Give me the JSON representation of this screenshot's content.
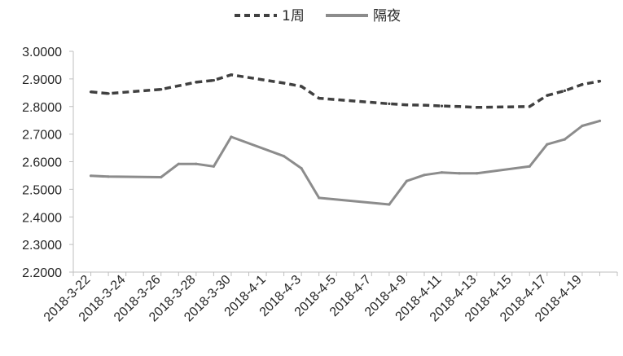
{
  "chart_data": {
    "type": "line",
    "title": "",
    "xlabel": "",
    "ylabel": "",
    "ylim": [
      2.2,
      3.0
    ],
    "y_ticks": [
      "3.0000",
      "2.9000",
      "2.8000",
      "2.7000",
      "2.6000",
      "2.5000",
      "2.4000",
      "2.3000",
      "2.2000"
    ],
    "x_tick_labels": [
      "2018-3-22",
      "2018-3-24",
      "2018-3-26",
      "2018-3-28",
      "2018-3-30",
      "2018-4-1",
      "2018-4-3",
      "2018-4-5",
      "2018-4-7",
      "2018-4-9",
      "2018-4-11",
      "2018-4-13",
      "2018-4-15",
      "2018-4-17",
      "2018-4-19"
    ],
    "legend_position": "top",
    "grid": false,
    "series": [
      {
        "name": "1周",
        "color": "#404040",
        "style": "dashed",
        "points": [
          [
            "2018-3-22",
            2.853
          ],
          [
            "2018-3-23",
            2.847
          ],
          [
            "2018-3-26",
            2.862
          ],
          [
            "2018-3-27",
            2.875
          ],
          [
            "2018-3-28",
            2.888
          ],
          [
            "2018-3-29",
            2.895
          ],
          [
            "2018-3-30",
            2.915
          ],
          [
            "2018-4-2",
            2.885
          ],
          [
            "2018-4-3",
            2.873
          ],
          [
            "2018-4-4",
            2.83
          ],
          [
            "2018-4-8",
            2.81
          ],
          [
            "2018-4-9",
            2.806
          ],
          [
            "2018-4-10",
            2.805
          ],
          [
            "2018-4-11",
            2.802
          ],
          [
            "2018-4-12",
            2.8
          ],
          [
            "2018-4-13",
            2.797
          ],
          [
            "2018-4-16",
            2.8
          ],
          [
            "2018-4-17",
            2.84
          ],
          [
            "2018-4-18",
            2.857
          ],
          [
            "2018-4-19",
            2.88
          ],
          [
            "2018-4-20",
            2.892
          ]
        ]
      },
      {
        "name": "隔夜",
        "color": "#8c8c8c",
        "style": "solid",
        "points": [
          [
            "2018-3-22",
            2.549
          ],
          [
            "2018-3-23",
            2.546
          ],
          [
            "2018-3-26",
            2.544
          ],
          [
            "2018-3-27",
            2.592
          ],
          [
            "2018-3-28",
            2.592
          ],
          [
            "2018-3-29",
            2.583
          ],
          [
            "2018-3-30",
            2.69
          ],
          [
            "2018-4-2",
            2.62
          ],
          [
            "2018-4-3",
            2.576
          ],
          [
            "2018-4-4",
            2.469
          ],
          [
            "2018-4-8",
            2.445
          ],
          [
            "2018-4-9",
            2.53
          ],
          [
            "2018-4-10",
            2.552
          ],
          [
            "2018-4-11",
            2.561
          ],
          [
            "2018-4-12",
            2.558
          ],
          [
            "2018-4-13",
            2.558
          ],
          [
            "2018-4-16",
            2.583
          ],
          [
            "2018-4-17",
            2.663
          ],
          [
            "2018-4-18",
            2.681
          ],
          [
            "2018-4-19",
            2.73
          ],
          [
            "2018-4-20",
            2.748
          ]
        ]
      }
    ]
  }
}
